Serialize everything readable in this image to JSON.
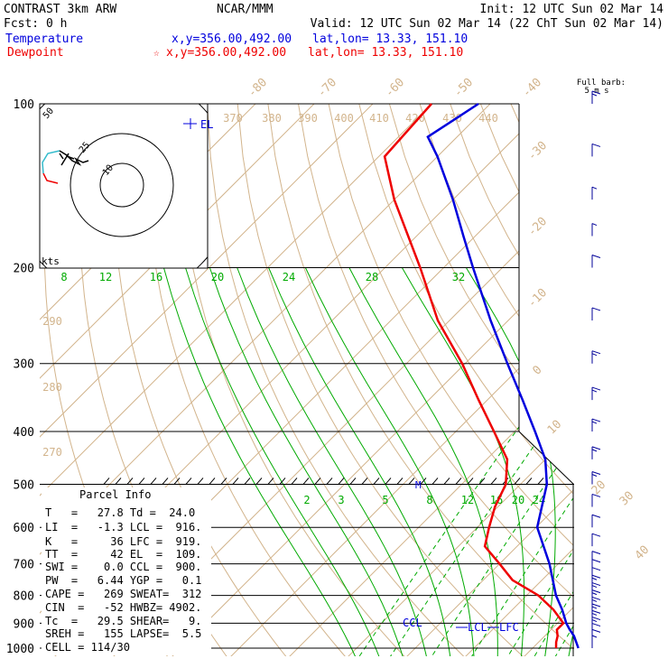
{
  "header": {
    "model": "CONTRAST  3km ARW",
    "fcst": "Fcst:    0 h",
    "center": "NCAR/MMM",
    "init": "Init: 12 UTC Sun 02 Mar 14",
    "valid": "Valid: 12 UTC Sun 02 Mar 14 (22 ChT Sun 02 Mar 14)",
    "temp_label": "Temperature",
    "temp_xy": "x,y=356.00,492.00",
    "temp_latlon": "lat,lon= 13.33, 151.10",
    "dew_label": "Dewpoint",
    "dew_marker": "☆",
    "dew_xy": "x,y=356.00,492.00",
    "dew_latlon": "lat,lon= 13.33, 151.10"
  },
  "barb_legend": [
    "Full barb:",
    "5 m s"
  ],
  "parcel": {
    "title": "Parcel Info",
    "rows": [
      "T   =   27.8 Td =  24.0",
      "LI  =   -1.3 LCL =  916.",
      "K   =     36 LFC =  919.",
      "TT  =     42 EL  =  109.",
      "SWI =    0.0 CCL =  900.",
      "PW  =   6.44 YGP =   0.1",
      "CAPE =   269 SWEAT=  312",
      "CIN  =   -52 HWBZ= 4902.",
      "Tc  =   29.5 SHEAR=   9.",
      "SREH =   155 LAPSE=  5.5",
      "CELL = 114/30"
    ]
  },
  "hodograph": {
    "unit_label": "kts",
    "ring_labels": [
      "50",
      "25",
      "10"
    ]
  },
  "levels": {
    "el": "EL",
    "lcl": "LCL",
    "lfc": "LFC",
    "ccl": "CCL",
    "m": "M"
  },
  "colors": {
    "temperature": "#0000dd",
    "dewpoint": "#ee0000",
    "grid": "#d2b48c",
    "mixing_ratio": "#00aa00",
    "wind": "#000099",
    "hodo_cyan": "#33bbcc"
  },
  "chart_data": {
    "type": "line",
    "title": "",
    "pressure_ticks": [
      100,
      200,
      300,
      400,
      500,
      600,
      700,
      800,
      900,
      1000
    ],
    "isotherm_labels_top": [
      "-80",
      "-70",
      "-60",
      "-50",
      "-40"
    ],
    "isotherm_labels_right": [
      "-30",
      "-20",
      "-10",
      "0",
      "10",
      "20",
      "30",
      "40"
    ],
    "theta_labels_top": [
      "370",
      "380",
      "390",
      "400",
      "410",
      "420",
      "430",
      "440"
    ],
    "theta_labels_left": [
      "290",
      "280",
      "270"
    ],
    "mixing_ratio_labels_upper": [
      "8",
      "12",
      "16",
      "20",
      "24",
      "28",
      "32"
    ],
    "mixing_ratio_labels_lower": [
      "2",
      "3",
      "5",
      "8",
      "12",
      "16",
      "20",
      "24"
    ],
    "series": [
      {
        "name": "Temperature",
        "color": "#0000dd",
        "p": [
          1000,
          950,
          925,
          900,
          850,
          800,
          700,
          600,
          500,
          450,
          400,
          350,
          300,
          250,
          200,
          175,
          150,
          125,
          115,
          100
        ],
        "t": [
          27.8,
          25.0,
          23.2,
          21.5,
          18.5,
          15.0,
          8.5,
          0.2,
          -5.5,
          -10.0,
          -16.5,
          -24.0,
          -32.8,
          -43.0,
          -55.0,
          -62.0,
          -70.0,
          -80.0,
          -85.0,
          -82.0
        ]
      },
      {
        "name": "Dewpoint",
        "color": "#ee0000",
        "p": [
          1000,
          975,
          950,
          925,
          900,
          850,
          800,
          750,
          700,
          650,
          600,
          550,
          500,
          450,
          400,
          350,
          300,
          250,
          200,
          150,
          125,
          100
        ],
        "td": [
          24.0,
          23.0,
          22.2,
          21.0,
          21.0,
          17.0,
          12.0,
          5.0,
          0.0,
          -5.5,
          -8.0,
          -10.5,
          -12.5,
          -16.5,
          -23.5,
          -31.5,
          -40.5,
          -52.0,
          -64.0,
          -80.0,
          -89.0,
          -90.0
        ]
      }
    ],
    "wind": {
      "p": [
        1000,
        975,
        950,
        925,
        900,
        875,
        850,
        825,
        800,
        775,
        750,
        725,
        700,
        650,
        600,
        550,
        500,
        450,
        400,
        350,
        300,
        250,
        200,
        175,
        150,
        125,
        100
      ],
      "spd": [
        5,
        8,
        12,
        15,
        15,
        15,
        15,
        15,
        15,
        15,
        12,
        10,
        10,
        10,
        10,
        10,
        15,
        15,
        15,
        15,
        15,
        10,
        10,
        5,
        5,
        10,
        15
      ]
    }
  }
}
